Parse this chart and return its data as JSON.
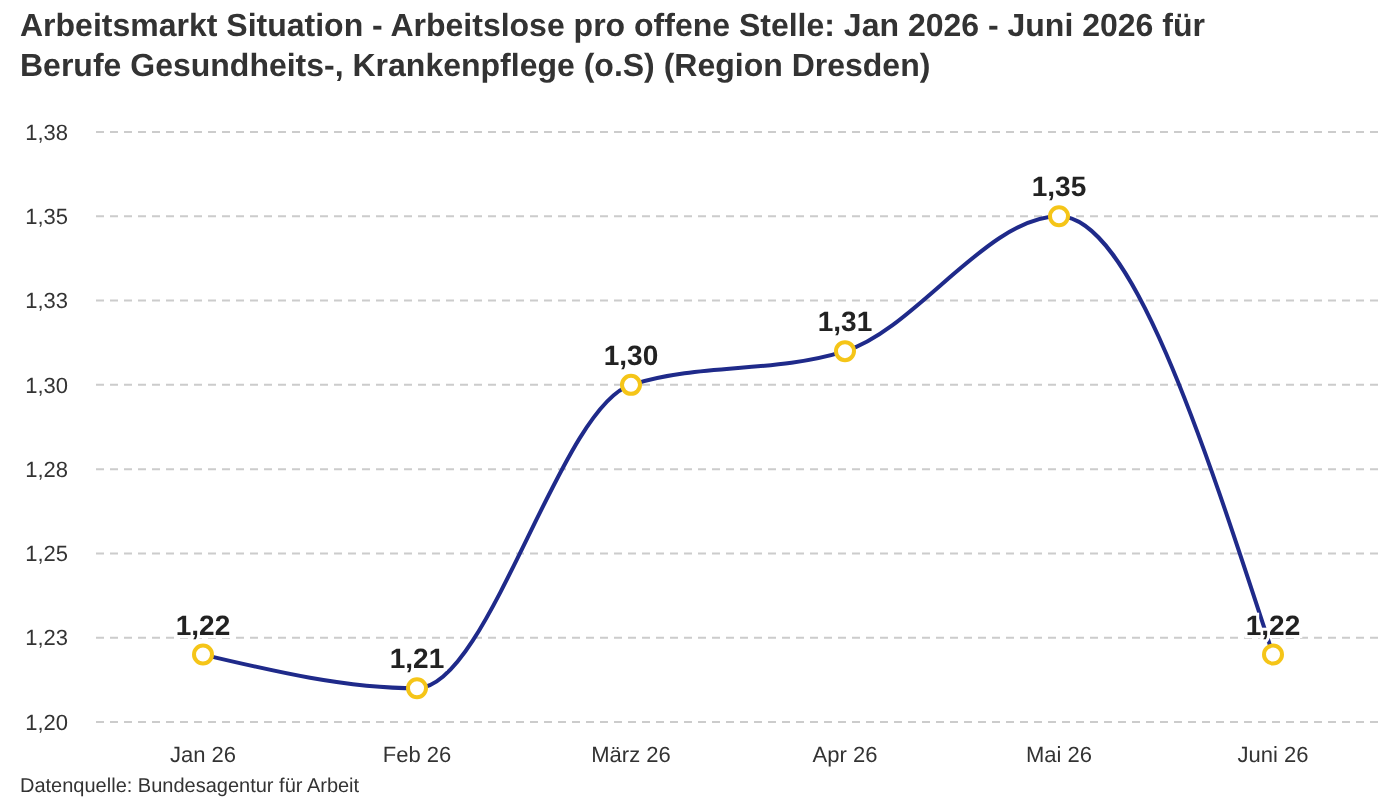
{
  "chart_data": {
    "type": "line",
    "title": "Arbeitsmarkt Situation - Arbeitslose pro offene Stelle: Jan 2026 - Juni 2026 für Berufe Gesundheits-, Krankenpflege (o.S) (Region Dresden)",
    "categories": [
      "Jan 26",
      "Feb 26",
      "März 26",
      "Apr 26",
      "Mai 26",
      "Juni 26"
    ],
    "series": [
      {
        "color": "#1f2a8a",
        "values": [
          1.22,
          1.21,
          1.3,
          1.31,
          1.35,
          1.22
        ],
        "value_labels": [
          "1,22",
          "1,21",
          "1,30",
          "1,31",
          "1,35",
          "1,22"
        ]
      }
    ],
    "ylim": [
      1.2,
      1.375
    ],
    "yticks": [
      {
        "value": 1.2,
        "label": "1,20"
      },
      {
        "value": 1.225,
        "label": "1,23"
      },
      {
        "value": 1.25,
        "label": "1,25"
      },
      {
        "value": 1.275,
        "label": "1,28"
      },
      {
        "value": 1.3,
        "label": "1,30"
      },
      {
        "value": 1.325,
        "label": "1,33"
      },
      {
        "value": 1.35,
        "label": "1,35"
      },
      {
        "value": 1.375,
        "label": "1,38"
      }
    ],
    "grid": "y",
    "marker": "circle",
    "line_style": "solid",
    "annotations": [
      "Datenquelle: Bundesagentur für Arbeit"
    ]
  }
}
